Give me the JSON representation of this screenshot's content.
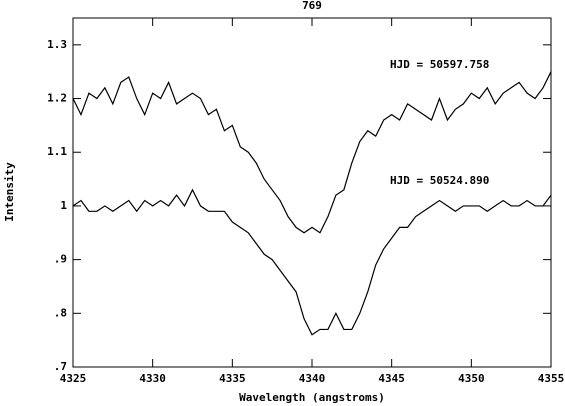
{
  "chart_data": {
    "type": "line",
    "title": "769",
    "xlabel": "Wavelength (angstroms)",
    "ylabel": "Intensity",
    "annotations": [
      "HJD = 50597.758",
      "HJD = 50524.890"
    ],
    "x": [
      4325,
      4325.5,
      4326,
      4326.5,
      4327,
      4327.5,
      4328,
      4328.5,
      4329,
      4329.5,
      4330,
      4330.5,
      4331,
      4331.5,
      4332,
      4332.5,
      4333,
      4333.5,
      4334,
      4334.5,
      4335,
      4335.5,
      4336,
      4336.5,
      4337,
      4337.5,
      4338,
      4338.5,
      4339,
      4339.5,
      4340,
      4340.5,
      4341,
      4341.5,
      4342,
      4342.5,
      4343,
      4343.5,
      4344,
      4344.5,
      4345,
      4345.5,
      4346,
      4346.5,
      4347,
      4347.5,
      4348,
      4348.5,
      4349,
      4349.5,
      4350,
      4350.5,
      4351,
      4351.5,
      4352,
      4352.5,
      4353,
      4353.5,
      4354,
      4354.5,
      4355
    ],
    "series": [
      {
        "color": "#000000",
        "values": [
          1.2,
          1.17,
          1.21,
          1.2,
          1.22,
          1.19,
          1.23,
          1.24,
          1.2,
          1.17,
          1.21,
          1.2,
          1.23,
          1.19,
          1.2,
          1.21,
          1.2,
          1.17,
          1.18,
          1.14,
          1.15,
          1.11,
          1.1,
          1.08,
          1.05,
          1.03,
          1.01,
          0.98,
          0.96,
          0.95,
          0.96,
          0.95,
          0.98,
          1.02,
          1.03,
          1.08,
          1.12,
          1.14,
          1.13,
          1.16,
          1.17,
          1.16,
          1.19,
          1.18,
          1.17,
          1.16,
          1.2,
          1.16,
          1.18,
          1.19,
          1.21,
          1.2,
          1.22,
          1.19,
          1.21,
          1.22,
          1.23,
          1.21,
          1.2,
          1.22,
          1.25
        ]
      },
      {
        "color": "#000000",
        "values": [
          1.0,
          1.01,
          0.99,
          0.99,
          1.0,
          0.99,
          1.0,
          1.01,
          0.99,
          1.01,
          1.0,
          1.01,
          1.0,
          1.02,
          1.0,
          1.03,
          1.0,
          0.99,
          0.99,
          0.99,
          0.97,
          0.96,
          0.95,
          0.93,
          0.91,
          0.9,
          0.88,
          0.86,
          0.84,
          0.79,
          0.76,
          0.77,
          0.77,
          0.8,
          0.77,
          0.77,
          0.8,
          0.84,
          0.89,
          0.92,
          0.94,
          0.96,
          0.96,
          0.98,
          0.99,
          1.0,
          1.01,
          1.0,
          0.99,
          1.0,
          1.0,
          1.0,
          0.99,
          1.0,
          1.01,
          1.0,
          1.0,
          1.01,
          1.0,
          1.0,
          1.02
        ]
      }
    ],
    "xlim": [
      4325,
      4355
    ],
    "xticks": [
      4325,
      4330,
      4335,
      4340,
      4345,
      4350,
      4355
    ],
    "ylim": [
      0.7,
      1.35
    ],
    "yticks": [
      {
        "value": 0.7,
        "label": ".7"
      },
      {
        "value": 0.8,
        "label": ".8"
      },
      {
        "value": 0.9,
        "label": ".9"
      },
      1,
      1.1,
      1.2,
      1.3
    ]
  }
}
